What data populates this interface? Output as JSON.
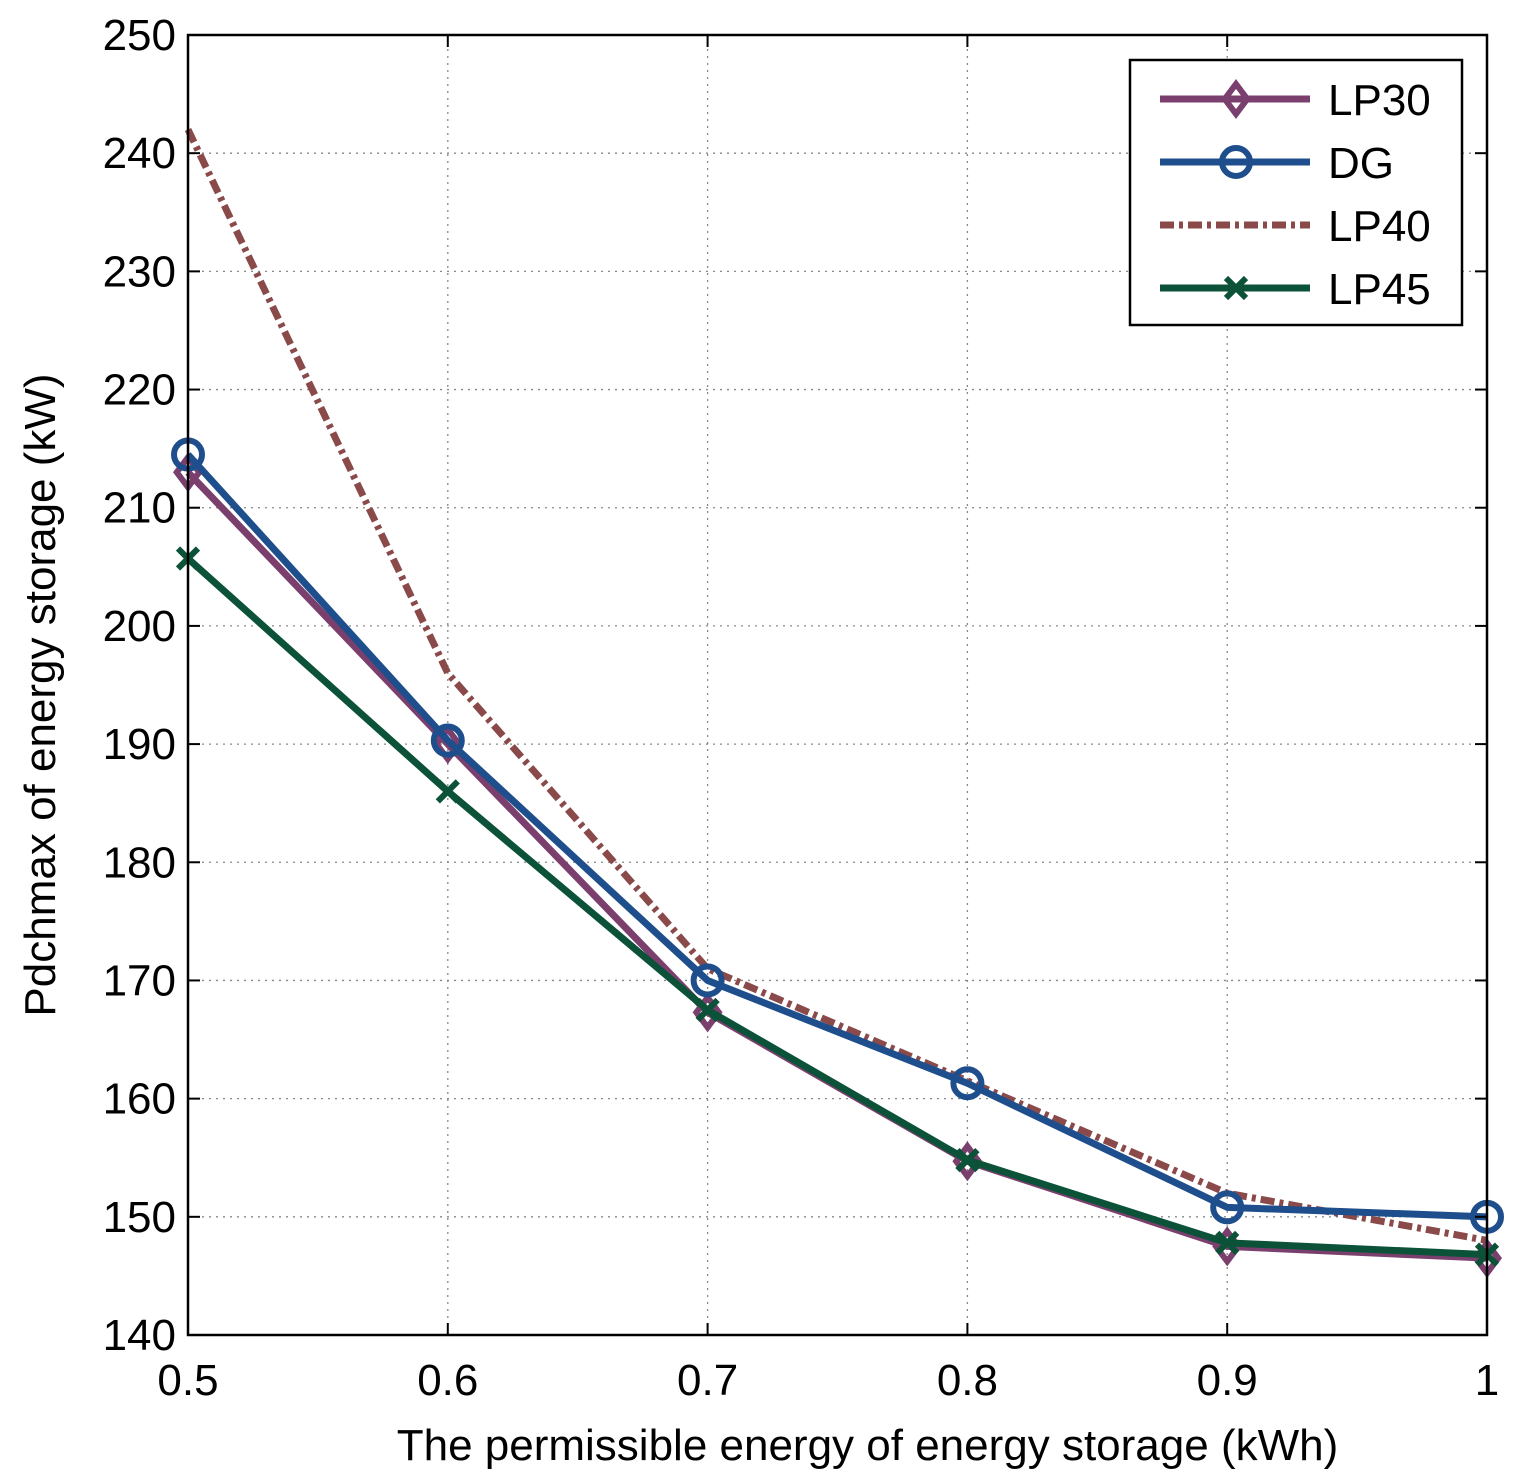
{
  "chart_data": {
    "type": "line",
    "title": "",
    "xlabel": "The permissible energy of energy storage (kWh)",
    "ylabel": "Pdchmax of energy storage (kW)",
    "xlim": [
      0.5,
      1
    ],
    "ylim": [
      140,
      250
    ],
    "xticks": [
      0.5,
      0.6,
      0.7,
      0.8,
      0.9,
      1
    ],
    "xtick_labels": [
      "0.5",
      "0.6",
      "0.7",
      "0.8",
      "0.9",
      "1"
    ],
    "yticks": [
      140,
      150,
      160,
      170,
      180,
      190,
      200,
      210,
      220,
      230,
      240,
      250
    ],
    "ytick_labels": [
      "140",
      "150",
      "160",
      "170",
      "180",
      "190",
      "200",
      "210",
      "220",
      "230",
      "240",
      "250"
    ],
    "grid": true,
    "legend_position": "top-right",
    "x": [
      0.5,
      0.6,
      0.7,
      0.8,
      0.9,
      1.0
    ],
    "series": [
      {
        "name": "LP30",
        "values": [
          213,
          190,
          167.3,
          154.7,
          147.5,
          146.5
        ],
        "color": "#7B3F6E",
        "marker": "diamond",
        "line_style": "solid"
      },
      {
        "name": "DG",
        "values": [
          214.5,
          190.3,
          170,
          161.3,
          150.8,
          150
        ],
        "color": "#1F4E8C",
        "marker": "circle",
        "line_style": "solid"
      },
      {
        "name": "LP40",
        "values": [
          242,
          196,
          171,
          161.5,
          152,
          148
        ],
        "color": "#8B4A4A",
        "marker": "none",
        "line_style": "dashdot"
      },
      {
        "name": "LP45",
        "values": [
          205.7,
          186,
          167.5,
          154.8,
          147.8,
          146.8
        ],
        "color": "#0B5238",
        "marker": "x",
        "line_style": "solid"
      }
    ]
  }
}
